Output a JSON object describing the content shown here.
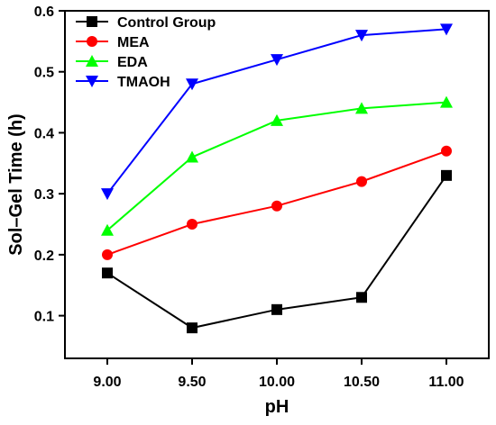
{
  "chart_data": {
    "type": "line",
    "xlabel": "pH",
    "ylabel": "Sol–Gel Time (h)",
    "x": [
      9.0,
      9.5,
      10.0,
      10.5,
      11.0
    ],
    "x_tick_labels": [
      "9.00",
      "9.50",
      "10.00",
      "10.50",
      "11.00"
    ],
    "xlim": [
      8.75,
      11.25
    ],
    "ylim": [
      0.03,
      0.6
    ],
    "y_ticks": [
      0.1,
      0.2,
      0.3,
      0.4,
      0.5,
      0.6
    ],
    "y_tick_labels": [
      "0.1",
      "0.2",
      "0.3",
      "0.4",
      "0.5",
      "0.6"
    ],
    "grid": false,
    "legend_position": "top-left",
    "series": [
      {
        "name": "Control Group",
        "color": "#000000",
        "marker": "square",
        "values": [
          0.17,
          0.08,
          0.11,
          0.13,
          0.33
        ]
      },
      {
        "name": "MEA",
        "color": "#ff0000",
        "marker": "circle",
        "values": [
          0.2,
          0.25,
          0.28,
          0.32,
          0.37
        ]
      },
      {
        "name": "EDA",
        "color": "#00ff00",
        "marker": "triangle-up",
        "values": [
          0.24,
          0.36,
          0.42,
          0.44,
          0.45
        ]
      },
      {
        "name": "TMAOH",
        "color": "#0000ff",
        "marker": "triangle-down",
        "values": [
          0.3,
          0.48,
          0.52,
          0.56,
          0.57
        ]
      }
    ]
  }
}
